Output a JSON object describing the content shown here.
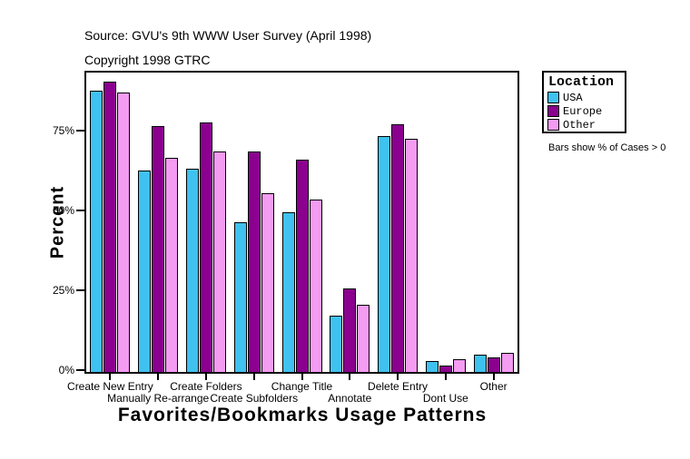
{
  "header": {
    "source": "Source: GVU's 9th WWW User Survey (April 1998)",
    "copyright": "Copyright 1998 GTRC"
  },
  "legend": {
    "title": "Location"
  },
  "note": "Bars show % of Cases > 0",
  "chart_data": {
    "type": "bar",
    "title": "",
    "xlabel": "Favorites/Bookmarks Usage Patterns",
    "ylabel": "Percent",
    "ylim": [
      0,
      95
    ],
    "grid": false,
    "legend_position": "top-right",
    "yticks": [
      0,
      25,
      50,
      75
    ],
    "ytick_labels": [
      "0%",
      "25%",
      "50%",
      "75%"
    ],
    "categories": [
      "Create New Entry",
      "Manually Re-arrange",
      "Create Folders",
      "Create Subfolders",
      "Change Title",
      "Annotate",
      "Delete Entry",
      "Dont Use",
      "Other"
    ],
    "series": [
      {
        "name": "USA",
        "color": "#3FC2EF",
        "values": [
          88,
          63,
          63.5,
          47,
          50,
          17.5,
          74,
          3.5,
          5.5
        ]
      },
      {
        "name": "Europe",
        "color": "#8B008F",
        "values": [
          91,
          77,
          78,
          69,
          66.5,
          26,
          77.5,
          2,
          4.5
        ]
      },
      {
        "name": "Other",
        "color": "#F49BF2",
        "values": [
          87.5,
          67,
          69,
          56,
          54,
          21,
          73,
          4,
          6
        ]
      }
    ]
  }
}
